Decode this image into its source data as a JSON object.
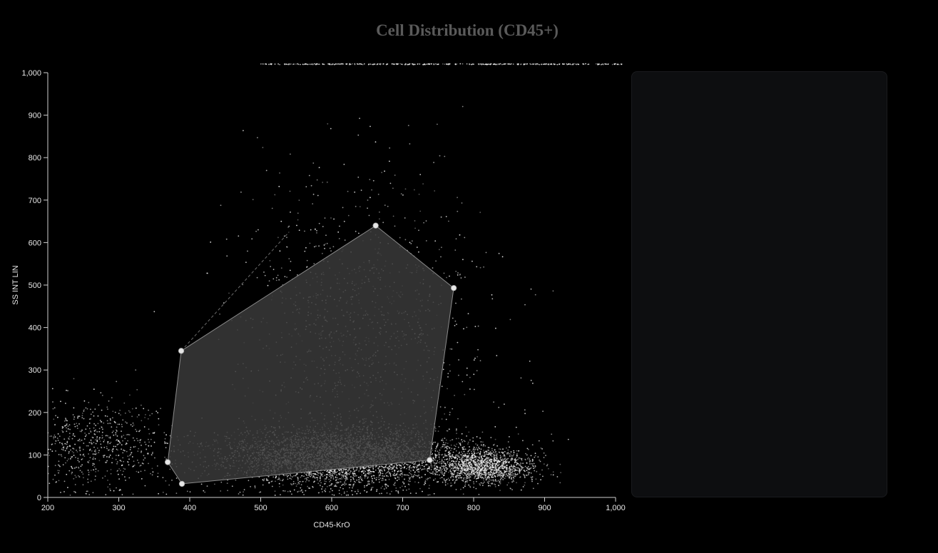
{
  "chart_data": {
    "type": "scatter",
    "title": "Cell Distribution (CD45+)",
    "xlabel": "CD45-KrO",
    "ylabel": "SS INT LIN",
    "xlim": [
      200,
      1000
    ],
    "ylim": [
      0,
      1000
    ],
    "x_ticks": [
      "200",
      "300",
      "400",
      "500",
      "600",
      "700",
      "800",
      "900",
      "1,000"
    ],
    "y_ticks": [
      "0",
      "100",
      "200",
      "300",
      "400",
      "500",
      "600",
      "700",
      "800",
      "900",
      "1,000"
    ],
    "gate_polygon": [
      {
        "x": 388,
        "y": 345
      },
      {
        "x": 662,
        "y": 640
      },
      {
        "x": 772,
        "y": 493
      },
      {
        "x": 738,
        "y": 88
      },
      {
        "x": 389,
        "y": 32
      },
      {
        "x": 369,
        "y": 83
      }
    ],
    "gate_draft_line": [
      {
        "x": 388,
        "y": 345
      },
      {
        "x": 540,
        "y": 625
      }
    ],
    "populations": [
      {
        "name": "",
        "center": [
          615,
          95
        ],
        "spread": [
          85,
          35
        ],
        "count": 4200
      },
      {
        "name": "",
        "center": [
          815,
          72
        ],
        "spread": [
          35,
          20
        ],
        "count": 1500
      },
      {
        "name": "",
        "center": [
          270,
          120
        ],
        "spread": [
          60,
          55
        ],
        "count": 700
      },
      {
        "name": "",
        "center": [
          640,
          420
        ],
        "spread": [
          90,
          170
        ],
        "count": 1100
      }
    ],
    "saturated_row_y": 1020,
    "colors": {
      "points": "#e8e8e8",
      "gate_fill": "#3a3a3a",
      "gate_stroke": "#8a8a8a",
      "axis": "#d0d0d0"
    }
  }
}
